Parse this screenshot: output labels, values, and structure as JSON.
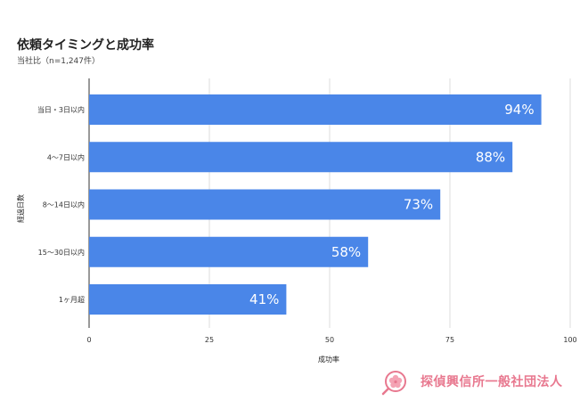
{
  "chart_data": {
    "type": "bar",
    "orientation": "horizontal",
    "title": "依頼タイミングと成功率",
    "subtitle": "当社比（n=1,247件）",
    "xlabel": "成功率",
    "ylabel": "経過日数",
    "categories": [
      "当日・3日以内",
      "4〜7日以内",
      "8〜14日以内",
      "15〜30日以内",
      "1ヶ月超"
    ],
    "values": [
      94,
      88,
      73,
      58,
      41
    ],
    "data_labels": [
      "94%",
      "88%",
      "73%",
      "58%",
      "41%"
    ],
    "xlim": [
      0,
      100
    ],
    "xticks": [
      0,
      25,
      50,
      75,
      100
    ],
    "grid": true,
    "legend": "none",
    "colors": {
      "bar": "#4a86e8",
      "grid": "#dcdcdc",
      "brand": "#e8788f"
    }
  },
  "brand": {
    "name": "探偵興信所一般社団法人",
    "icon": "flower-magnifier-logo"
  }
}
